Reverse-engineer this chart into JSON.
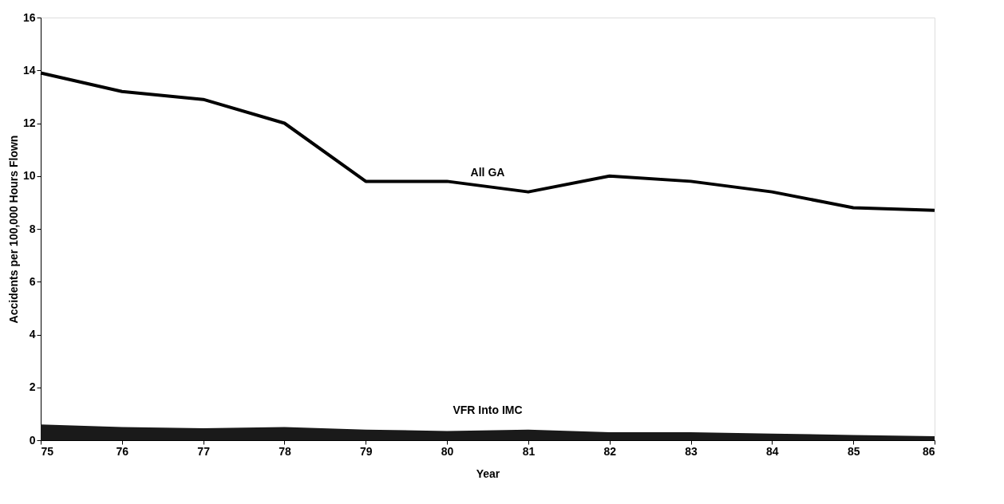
{
  "chart_data": {
    "type": "line",
    "xlabel": "Year",
    "ylabel": "Accidents per 100,000 Hours Flown",
    "x": [
      75,
      76,
      77,
      78,
      79,
      80,
      81,
      82,
      83,
      84,
      85,
      86
    ],
    "series": [
      {
        "name": "All GA",
        "color": "#000000",
        "values": [
          13.9,
          13.2,
          12.9,
          12.0,
          9.8,
          9.8,
          9.4,
          10.0,
          9.8,
          9.4,
          8.8,
          8.7
        ]
      },
      {
        "name": "VFR Into IMC",
        "type": "area",
        "color": "#1a1a1a",
        "values": [
          0.6,
          0.5,
          0.45,
          0.5,
          0.4,
          0.35,
          0.4,
          0.3,
          0.3,
          0.25,
          0.2,
          0.15
        ]
      }
    ],
    "xlim": [
      75,
      86
    ],
    "xticks": [
      75,
      76,
      77,
      78,
      79,
      80,
      81,
      82,
      83,
      84,
      85,
      86
    ],
    "ylim": [
      0,
      16
    ],
    "yticks": [
      0,
      2,
      4,
      6,
      8,
      10,
      12,
      14,
      16
    ],
    "grid": false,
    "line_style": "solid",
    "marker": "none"
  }
}
